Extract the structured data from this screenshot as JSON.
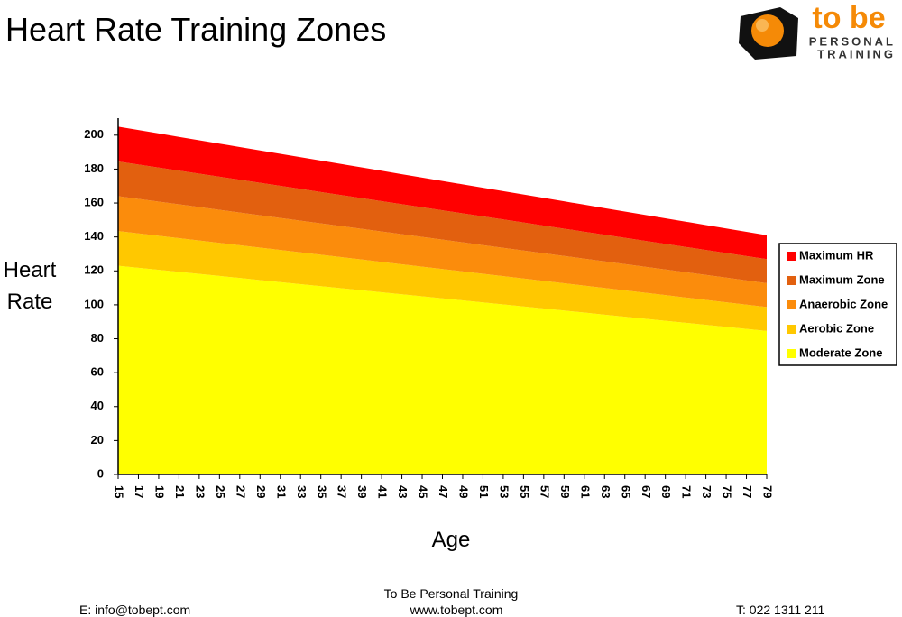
{
  "logo": {
    "word": "to be",
    "line1": "PERSONAL",
    "line2": "TRAINING"
  },
  "chart_data": {
    "type": "area",
    "stacked": true,
    "title": "Heart Rate Training Zones",
    "x_label": "Age",
    "y_label": "Heart Rate",
    "categories": [
      "15",
      "17",
      "19",
      "21",
      "23",
      "25",
      "27",
      "29",
      "31",
      "33",
      "35",
      "37",
      "39",
      "41",
      "43",
      "45",
      "47",
      "49",
      "51",
      "53",
      "55",
      "57",
      "59",
      "61",
      "63",
      "65",
      "67",
      "69",
      "71",
      "73",
      "75",
      "77",
      "79"
    ],
    "ylim": [
      0,
      210
    ],
    "yticks": [
      0,
      20,
      40,
      60,
      80,
      100,
      120,
      140,
      160,
      180,
      200
    ],
    "legend": "right",
    "series": [
      {
        "name": "Moderate Zone",
        "color": "#ffff00",
        "values": [
          123,
          121.8,
          120.6,
          119.4,
          118.2,
          117,
          115.8,
          114.6,
          113.4,
          112.2,
          111,
          109.8,
          108.6,
          107.4,
          106.2,
          105,
          103.8,
          102.6,
          101.4,
          100.2,
          99,
          97.8,
          96.6,
          95.4,
          94.2,
          93,
          91.8,
          90.6,
          89.4,
          88.2,
          87,
          85.8,
          84.6
        ]
      },
      {
        "name": "Aerobic Zone",
        "color": "#ffc800",
        "values": [
          20.5,
          20.3,
          20.1,
          19.9,
          19.7,
          19.5,
          19.3,
          19.1,
          18.9,
          18.7,
          18.5,
          18.3,
          18.1,
          17.9,
          17.7,
          17.5,
          17.3,
          17.1,
          16.9,
          16.7,
          16.5,
          16.3,
          16.1,
          15.9,
          15.7,
          15.5,
          15.3,
          15.1,
          14.9,
          14.7,
          14.5,
          14.3,
          14.1
        ]
      },
      {
        "name": "Anaerobic Zone",
        "color": "#fb8c0c",
        "values": [
          20.5,
          20.3,
          20.1,
          19.9,
          19.7,
          19.5,
          19.3,
          19.1,
          18.9,
          18.7,
          18.5,
          18.3,
          18.1,
          17.9,
          17.7,
          17.5,
          17.3,
          17.1,
          16.9,
          16.7,
          16.5,
          16.3,
          16.1,
          15.9,
          15.7,
          15.5,
          15.3,
          15.1,
          14.9,
          14.7,
          14.5,
          14.3,
          14.1
        ]
      },
      {
        "name": "Maximum Zone",
        "color": "#e2600f",
        "values": [
          20.5,
          20.3,
          20.1,
          19.9,
          19.7,
          19.5,
          19.3,
          19.1,
          18.9,
          18.7,
          18.5,
          18.3,
          18.1,
          17.9,
          17.7,
          17.5,
          17.3,
          17.1,
          16.9,
          16.7,
          16.5,
          16.3,
          16.1,
          15.9,
          15.7,
          15.5,
          15.3,
          15.1,
          14.9,
          14.7,
          14.5,
          14.3,
          14.1
        ]
      },
      {
        "name": "Maximum HR",
        "color": "#ff0000",
        "values": [
          20.5,
          20.3,
          20.1,
          19.9,
          19.7,
          19.5,
          19.3,
          19.1,
          18.9,
          18.7,
          18.5,
          18.3,
          18.1,
          17.9,
          17.7,
          17.5,
          17.3,
          17.1,
          16.9,
          16.7,
          16.5,
          16.3,
          16.1,
          15.9,
          15.7,
          15.5,
          15.3,
          15.1,
          14.9,
          14.7,
          14.5,
          14.3,
          14.1
        ]
      }
    ]
  },
  "footer": {
    "company": "To Be Personal Training",
    "email": "E: info@tobept.com",
    "web": "www.tobept.com",
    "phone": "T: 022 1311 211"
  }
}
